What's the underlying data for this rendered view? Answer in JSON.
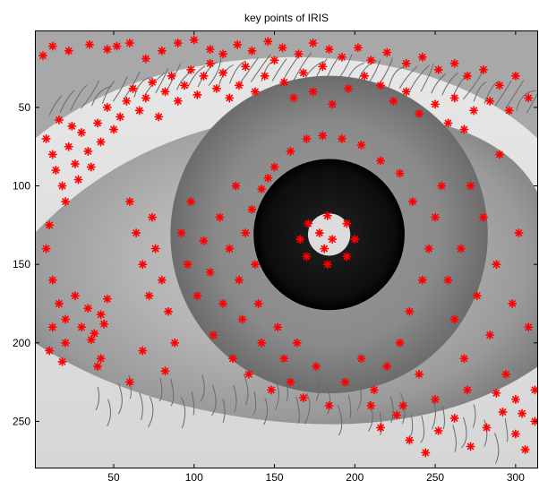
{
  "figure": {
    "title": "key points of IRIS"
  },
  "colors": {
    "marker": "#ff0000",
    "pupil": "#0d0d0d",
    "background": "#ffffff"
  },
  "axes": {
    "xlim": [
      1,
      314
    ],
    "ylim": [
      280,
      1
    ],
    "x_ticks": [
      50,
      100,
      150,
      200,
      250,
      300
    ],
    "y_ticks": [
      50,
      100,
      150,
      200,
      250
    ],
    "x_tick_labels": [
      "50",
      "100",
      "150",
      "200",
      "250",
      "300"
    ],
    "y_tick_labels": [
      "50",
      "100",
      "150",
      "200",
      "250"
    ]
  },
  "image": {
    "subject": "grayscale close-up of a human eye",
    "pupil_center": [
      184,
      131
    ],
    "pupil_radius": 47
  },
  "keypoints": {
    "marker": "asterisk",
    "points": [
      [
        6,
        17
      ],
      [
        12,
        11
      ],
      [
        22,
        14
      ],
      [
        35,
        10
      ],
      [
        46,
        13
      ],
      [
        52,
        11
      ],
      [
        60,
        9
      ],
      [
        70,
        19
      ],
      [
        80,
        14
      ],
      [
        90,
        9
      ],
      [
        100,
        7
      ],
      [
        110,
        13
      ],
      [
        118,
        16
      ],
      [
        127,
        10
      ],
      [
        136,
        14
      ],
      [
        146,
        8
      ],
      [
        155,
        12
      ],
      [
        165,
        16
      ],
      [
        174,
        9
      ],
      [
        184,
        13
      ],
      [
        192,
        18
      ],
      [
        202,
        12
      ],
      [
        210,
        20
      ],
      [
        220,
        15
      ],
      [
        232,
        22
      ],
      [
        242,
        18
      ],
      [
        252,
        26
      ],
      [
        262,
        22
      ],
      [
        270,
        30
      ],
      [
        280,
        26
      ],
      [
        290,
        36
      ],
      [
        300,
        30
      ],
      [
        308,
        44
      ],
      [
        296,
        52
      ],
      [
        284,
        46
      ],
      [
        274,
        52
      ],
      [
        262,
        44
      ],
      [
        8,
        70
      ],
      [
        12,
        80
      ],
      [
        14,
        90
      ],
      [
        18,
        100
      ],
      [
        20,
        110
      ],
      [
        22,
        75
      ],
      [
        26,
        86
      ],
      [
        28,
        96
      ],
      [
        30,
        66
      ],
      [
        34,
        78
      ],
      [
        24,
        62
      ],
      [
        16,
        58
      ],
      [
        36,
        88
      ],
      [
        40,
        60
      ],
      [
        42,
        72
      ],
      [
        46,
        50
      ],
      [
        50,
        64
      ],
      [
        54,
        56
      ],
      [
        58,
        46
      ],
      [
        62,
        38
      ],
      [
        66,
        52
      ],
      [
        70,
        44
      ],
      [
        74,
        34
      ],
      [
        78,
        56
      ],
      [
        82,
        40
      ],
      [
        86,
        30
      ],
      [
        90,
        46
      ],
      [
        94,
        36
      ],
      [
        98,
        26
      ],
      [
        102,
        42
      ],
      [
        106,
        30
      ],
      [
        110,
        22
      ],
      [
        114,
        38
      ],
      [
        118,
        28
      ],
      [
        122,
        44
      ],
      [
        128,
        36
      ],
      [
        132,
        24
      ],
      [
        138,
        40
      ],
      [
        144,
        30
      ],
      [
        150,
        20
      ],
      [
        156,
        34
      ],
      [
        162,
        44
      ],
      [
        168,
        28
      ],
      [
        174,
        40
      ],
      [
        180,
        24
      ],
      [
        186,
        48
      ],
      [
        196,
        38
      ],
      [
        206,
        30
      ],
      [
        216,
        36
      ],
      [
        224,
        46
      ],
      [
        232,
        40
      ],
      [
        240,
        54
      ],
      [
        250,
        48
      ],
      [
        258,
        60
      ],
      [
        268,
        64
      ],
      [
        10,
        125
      ],
      [
        8,
        140
      ],
      [
        12,
        160
      ],
      [
        16,
        175
      ],
      [
        20,
        185
      ],
      [
        26,
        170
      ],
      [
        30,
        190
      ],
      [
        34,
        178
      ],
      [
        38,
        194
      ],
      [
        42,
        182
      ],
      [
        46,
        172
      ],
      [
        12,
        190
      ],
      [
        20,
        200
      ],
      [
        36,
        198
      ],
      [
        42,
        210
      ],
      [
        18,
        212
      ],
      [
        44,
        188
      ],
      [
        60,
        110
      ],
      [
        64,
        130
      ],
      [
        68,
        150
      ],
      [
        72,
        170
      ],
      [
        74,
        120
      ],
      [
        76,
        140
      ],
      [
        80,
        160
      ],
      [
        84,
        180
      ],
      [
        88,
        200
      ],
      [
        92,
        130
      ],
      [
        96,
        150
      ],
      [
        98,
        110
      ],
      [
        102,
        170
      ],
      [
        106,
        135
      ],
      [
        110,
        155
      ],
      [
        112,
        195
      ],
      [
        116,
        120
      ],
      [
        118,
        175
      ],
      [
        122,
        140
      ],
      [
        124,
        210
      ],
      [
        126,
        100
      ],
      [
        128,
        160
      ],
      [
        130,
        185
      ],
      [
        132,
        130
      ],
      [
        134,
        220
      ],
      [
        136,
        115
      ],
      [
        138,
        150
      ],
      [
        140,
        175
      ],
      [
        142,
        200
      ],
      [
        146,
        95
      ],
      [
        148,
        230
      ],
      [
        152,
        190
      ],
      [
        156,
        210
      ],
      [
        160,
        225
      ],
      [
        164,
        200
      ],
      [
        168,
        235
      ],
      [
        176,
        215
      ],
      [
        184,
        240
      ],
      [
        194,
        225
      ],
      [
        204,
        210
      ],
      [
        212,
        230
      ],
      [
        220,
        215
      ],
      [
        228,
        200
      ],
      [
        234,
        180
      ],
      [
        242,
        160
      ],
      [
        246,
        140
      ],
      [
        250,
        120
      ],
      [
        254,
        100
      ],
      [
        258,
        160
      ],
      [
        262,
        185
      ],
      [
        266,
        140
      ],
      [
        268,
        210
      ],
      [
        272,
        100
      ],
      [
        276,
        170
      ],
      [
        280,
        120
      ],
      [
        284,
        195
      ],
      [
        288,
        150
      ],
      [
        290,
        80
      ],
      [
        294,
        220
      ],
      [
        298,
        175
      ],
      [
        302,
        130
      ],
      [
        304,
        245
      ],
      [
        308,
        190
      ],
      [
        312,
        230
      ],
      [
        160,
        78
      ],
      [
        170,
        70
      ],
      [
        180,
        68
      ],
      [
        192,
        70
      ],
      [
        204,
        74
      ],
      [
        216,
        84
      ],
      [
        228,
        92
      ],
      [
        236,
        110
      ],
      [
        150,
        88
      ],
      [
        142,
        102
      ],
      [
        171,
        124
      ],
      [
        183,
        119
      ],
      [
        195,
        124
      ],
      [
        200,
        134
      ],
      [
        195,
        145
      ],
      [
        183,
        150
      ],
      [
        170,
        145
      ],
      [
        166,
        134
      ],
      [
        178,
        130
      ],
      [
        186,
        134
      ],
      [
        181,
        140
      ],
      [
        10,
        205
      ],
      [
        40,
        215
      ],
      [
        60,
        225
      ],
      [
        68,
        205
      ],
      [
        82,
        218
      ],
      [
        210,
        240
      ],
      [
        216,
        254
      ],
      [
        226,
        246
      ],
      [
        234,
        262
      ],
      [
        244,
        270
      ],
      [
        252,
        256
      ],
      [
        262,
        248
      ],
      [
        272,
        266
      ],
      [
        282,
        254
      ],
      [
        292,
        244
      ],
      [
        300,
        258
      ],
      [
        306,
        268
      ],
      [
        312,
        250
      ],
      [
        300,
        236
      ],
      [
        288,
        232
      ],
      [
        270,
        230
      ],
      [
        250,
        236
      ],
      [
        240,
        220
      ],
      [
        230,
        240
      ]
    ]
  }
}
